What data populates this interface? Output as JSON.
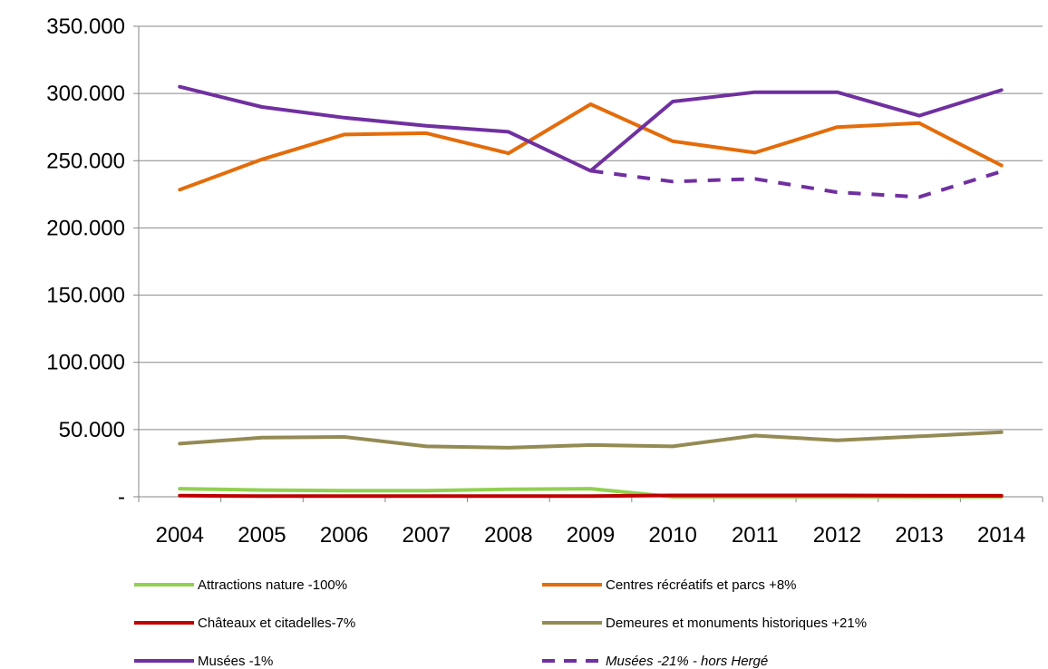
{
  "chart_data": {
    "type": "line",
    "title": "",
    "xlabel": "",
    "ylabel": "",
    "x": [
      "2004",
      "2005",
      "2006",
      "2007",
      "2008",
      "2009",
      "2010",
      "2011",
      "2012",
      "2013",
      "2014"
    ],
    "ylim": [
      0,
      350000
    ],
    "y_ticks": [
      {
        "value": 0,
        "label": "-"
      },
      {
        "value": 50000,
        "label": "50.000"
      },
      {
        "value": 100000,
        "label": "100.000"
      },
      {
        "value": 150000,
        "label": "150.000"
      },
      {
        "value": 200000,
        "label": "200.000"
      },
      {
        "value": 250000,
        "label": "250.000"
      },
      {
        "value": 300000,
        "label": "300.000"
      },
      {
        "value": 350000,
        "label": "350.000"
      }
    ],
    "grid": "horizontal",
    "legend_position": "bottom",
    "series": [
      {
        "name": "Attractions nature -100%",
        "color": "#92d050",
        "dashed": false,
        "italic": false,
        "values": [
          6000,
          5000,
          4500,
          4500,
          5500,
          6000,
          0,
          0,
          0,
          0,
          0
        ]
      },
      {
        "name": "Centres récréatifs et parcs +8%",
        "color": "#e46c0a",
        "dashed": false,
        "italic": false,
        "values": [
          228500,
          251000,
          269500,
          270500,
          255500,
          292000,
          264500,
          256000,
          275000,
          278000,
          246500
        ]
      },
      {
        "name": "Châteaux et citadelles-7%",
        "color": "#c00000",
        "dashed": false,
        "italic": false,
        "values": [
          800,
          500,
          500,
          500,
          500,
          500,
          1000,
          1000,
          1000,
          800,
          750
        ]
      },
      {
        "name": "Demeures et monuments historiques +21%",
        "color": "#948a54",
        "dashed": false,
        "italic": false,
        "values": [
          39500,
          44000,
          44500,
          37500,
          36500,
          38500,
          37500,
          45500,
          42000,
          45000,
          48000
        ]
      },
      {
        "name": "Musées -1%",
        "color": "#7030a0",
        "dashed": false,
        "italic": false,
        "values": [
          305000,
          290000,
          282000,
          276000,
          271500,
          242500,
          294000,
          301000,
          301000,
          283500,
          302500
        ]
      },
      {
        "name": "Musées -21% - hors Hergé",
        "color": "#7030a0",
        "dashed": true,
        "italic": true,
        "values": [
          null,
          null,
          null,
          null,
          null,
          242500,
          234500,
          236500,
          226500,
          223000,
          242000
        ]
      }
    ]
  }
}
